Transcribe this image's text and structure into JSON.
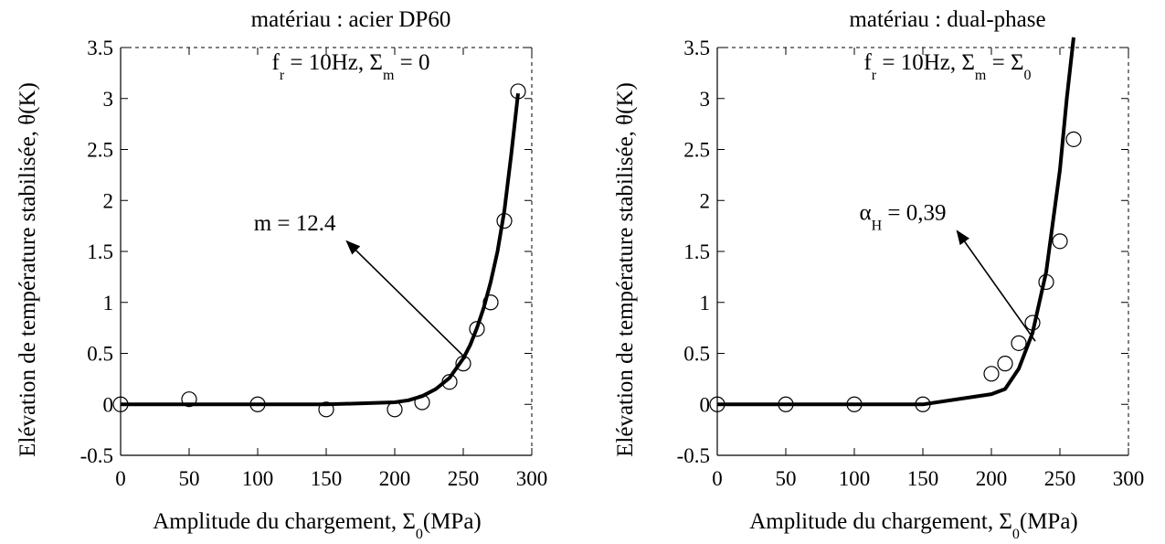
{
  "chart_data": [
    {
      "type": "scatter",
      "title": "matériau : acier DP60",
      "conditions": {
        "f_label": "f",
        "f_sub": "r",
        "f_value": " = 10Hz, ",
        "sigma": "Σ",
        "sigma_sub": "m",
        "sigma_value": " = 0",
        "sigma_value_sub": ""
      },
      "xlabel": {
        "main": "Amplitude du chargement, Σ",
        "sub": "0",
        "unit": "(MPa)"
      },
      "ylabel": "Elévation de température stabilisée, θ(K)",
      "xlim": [
        0,
        300
      ],
      "ylim": [
        -0.5,
        3.5
      ],
      "xticks": [
        "0",
        "50",
        "100",
        "150",
        "200",
        "250",
        "300"
      ],
      "yticks": [
        "-0.5",
        "0",
        "0.5",
        "1",
        "1.5",
        "2",
        "2.5",
        "3",
        "3.5"
      ],
      "annotation": {
        "main": "m = 12.4",
        "sub": "",
        "rest": "",
        "from": [
          165,
          1.6
        ],
        "to": [
          252,
          0.45
        ]
      },
      "series": [
        {
          "kind": "points",
          "x": [
            0,
            50,
            100,
            150,
            200,
            220,
            240,
            250,
            260,
            270,
            280,
            290
          ],
          "y": [
            0,
            0.05,
            0,
            -0.05,
            -0.05,
            0.02,
            0.22,
            0.4,
            0.74,
            1.0,
            1.8,
            3.07
          ]
        },
        {
          "kind": "line",
          "x": [
            0,
            50,
            100,
            150,
            200,
            210,
            220,
            230,
            240,
            250,
            255,
            260,
            265,
            270,
            275,
            280,
            285,
            290
          ],
          "y": [
            0,
            0,
            0,
            0,
            0.02,
            0.04,
            0.08,
            0.15,
            0.26,
            0.45,
            0.58,
            0.75,
            0.95,
            1.2,
            1.5,
            1.9,
            2.45,
            3.05
          ]
        }
      ]
    },
    {
      "type": "scatter",
      "title": "matériau : dual-phase",
      "conditions": {
        "f_label": "f",
        "f_sub": "r",
        "f_value": " = 10Hz, ",
        "sigma": "Σ",
        "sigma_sub": "m",
        "sigma_value": " = Σ",
        "sigma_value_sub": "0"
      },
      "xlabel": {
        "main": "Amplitude du chargement, Σ",
        "sub": "0",
        "unit": "(MPa)"
      },
      "ylabel": "Elévation de température stabilisée, θ(K)",
      "xlim": [
        0,
        300
      ],
      "ylim": [
        -0.5,
        3.5
      ],
      "xticks": [
        "0",
        "50",
        "100",
        "150",
        "200",
        "250",
        "300"
      ],
      "yticks": [
        "-0.5",
        "0",
        "0.5",
        "1",
        "1.5",
        "2",
        "2.5",
        "3",
        "3.5"
      ],
      "annotation": {
        "main": "α",
        "sub": "H",
        "rest": " = 0,39",
        "from": [
          175,
          1.7
        ],
        "to": [
          232,
          0.62
        ]
      },
      "series": [
        {
          "kind": "points",
          "x": [
            0,
            50,
            100,
            150,
            200,
            210,
            220,
            230,
            240,
            250,
            260
          ],
          "y": [
            0,
            0,
            0,
            0,
            0.3,
            0.4,
            0.6,
            0.8,
            1.2,
            1.6,
            2.6
          ]
        },
        {
          "kind": "line",
          "x": [
            0,
            50,
            100,
            150,
            200,
            210,
            220,
            230,
            240,
            250,
            255,
            260
          ],
          "y": [
            0,
            0,
            0,
            0,
            0.1,
            0.15,
            0.35,
            0.7,
            1.3,
            2.3,
            3.0,
            3.6
          ]
        }
      ]
    }
  ]
}
